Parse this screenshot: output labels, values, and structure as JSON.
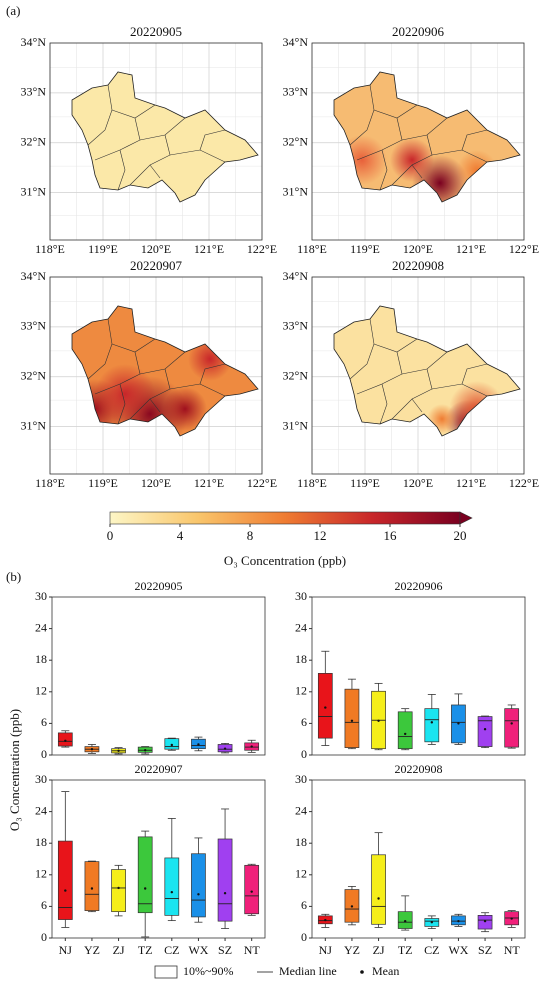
{
  "panel_labels": [
    "(a)",
    "(b)"
  ],
  "ylabel": "O₃ Concentration (ppb)",
  "legend": [
    "10%~90%",
    "Median line",
    "Mean"
  ],
  "chart_data": [
    {
      "type": "map",
      "title": "20220905",
      "fill": "#fbe8a8",
      "xlim": [
        118,
        122
      ],
      "ylim": [
        30.05,
        34
      ],
      "xticks": [
        {
          "value": 118,
          "label": "118°E"
        },
        {
          "value": 119,
          "label": "119°E"
        },
        {
          "value": 120,
          "label": "120°E"
        },
        {
          "value": 121,
          "label": "121°E"
        },
        {
          "value": 122,
          "label": "122°E"
        }
      ],
      "yticks": [
        {
          "value": 31,
          "label": "31°N"
        },
        {
          "value": 32,
          "label": "32°N"
        },
        {
          "value": 33,
          "label": "33°N"
        },
        {
          "value": 34,
          "label": "34°N"
        }
      ]
    },
    {
      "type": "map",
      "title": "20220906",
      "fill": "#f6bb72",
      "xlim": [
        118,
        122
      ],
      "ylim": [
        30.05,
        34
      ],
      "xticks": [
        {
          "value": 118,
          "label": "118°E"
        },
        {
          "value": 119,
          "label": "119°E"
        },
        {
          "value": 120,
          "label": "120°E"
        },
        {
          "value": 121,
          "label": "121°E"
        },
        {
          "value": 122,
          "label": "122°E"
        }
      ],
      "yticks": [
        {
          "value": 31,
          "label": "31°N"
        },
        {
          "value": 32,
          "label": "32°N"
        },
        {
          "value": 33,
          "label": "33°N"
        },
        {
          "value": 34,
          "label": "34°N"
        }
      ]
    },
    {
      "type": "map",
      "title": "20220907",
      "fill": "#ee8a40",
      "xlim": [
        118,
        122
      ],
      "ylim": [
        30.05,
        34
      ],
      "xticks": [
        {
          "value": 118,
          "label": "118°E"
        },
        {
          "value": 119,
          "label": "119°E"
        },
        {
          "value": 120,
          "label": "120°E"
        },
        {
          "value": 121,
          "label": "121°E"
        },
        {
          "value": 122,
          "label": "122°E"
        }
      ],
      "yticks": [
        {
          "value": 31,
          "label": "31°N"
        },
        {
          "value": 32,
          "label": "32°N"
        },
        {
          "value": 33,
          "label": "33°N"
        },
        {
          "value": 34,
          "label": "34°N"
        }
      ]
    },
    {
      "type": "map",
      "title": "20220908",
      "fill": "#fbe1a0",
      "xlim": [
        118,
        122
      ],
      "ylim": [
        30.05,
        34
      ],
      "xticks": [
        {
          "value": 118,
          "label": "118°E"
        },
        {
          "value": 119,
          "label": "119°E"
        },
        {
          "value": 120,
          "label": "120°E"
        },
        {
          "value": 121,
          "label": "121°E"
        },
        {
          "value": 122,
          "label": "122°E"
        }
      ],
      "yticks": [
        {
          "value": 31,
          "label": "31°N"
        },
        {
          "value": 32,
          "label": "32°N"
        },
        {
          "value": 33,
          "label": "33°N"
        },
        {
          "value": 34,
          "label": "34°N"
        }
      ]
    },
    {
      "type": "colorbar",
      "title": "O₃ Concentration (ppb)",
      "xlim": [
        0,
        20
      ],
      "xticks": [
        0,
        4,
        8,
        12,
        16,
        20
      ],
      "colors": [
        "#fdf6c6",
        "#f9c66c",
        "#ef7c32",
        "#c8262a",
        "#7a0020"
      ]
    },
    {
      "type": "box",
      "title": "20220905",
      "ylim": [
        0,
        30
      ],
      "yticks": [
        0,
        6,
        12,
        18,
        24,
        30
      ],
      "colors": [
        "#e8141a",
        "#f07a24",
        "#f5ee1a",
        "#3cc83c",
        "#1ae4f0",
        "#1a90e8",
        "#a040f0",
        "#f0207a"
      ],
      "boxes": [
        {
          "min": 1.5,
          "p10": 1.7,
          "median": 2.6,
          "p90": 4.2,
          "max": 4.6,
          "mean": 2.7
        },
        {
          "min": 0.3,
          "p10": 0.6,
          "median": 1.1,
          "p90": 1.6,
          "max": 2.0,
          "mean": 1.1
        },
        {
          "min": 0.2,
          "p10": 0.4,
          "median": 0.8,
          "p90": 1.2,
          "max": 1.4,
          "mean": 0.8
        },
        {
          "min": 0.2,
          "p10": 0.5,
          "median": 0.9,
          "p90": 1.5,
          "max": 1.6,
          "mean": 0.9
        },
        {
          "min": 0.9,
          "p10": 1.1,
          "median": 1.6,
          "p90": 3.1,
          "max": 3.2,
          "mean": 1.9
        },
        {
          "min": 0.8,
          "p10": 1.2,
          "median": 1.8,
          "p90": 3.0,
          "max": 3.4,
          "mean": 2.0
        },
        {
          "min": 0.4,
          "p10": 0.6,
          "median": 1.1,
          "p90": 2.0,
          "max": 2.2,
          "mean": 1.2
        },
        {
          "min": 0.5,
          "p10": 0.9,
          "median": 1.5,
          "p90": 2.3,
          "max": 2.8,
          "mean": 1.6
        }
      ]
    },
    {
      "type": "box",
      "title": "20220906",
      "ylim": [
        0,
        30
      ],
      "yticks": [
        0,
        6,
        12,
        18,
        24,
        30
      ],
      "colors": [
        "#e8141a",
        "#f07a24",
        "#f5ee1a",
        "#3cc83c",
        "#1ae4f0",
        "#1a90e8",
        "#a040f0",
        "#f0207a"
      ],
      "boxes": [
        {
          "min": 1.8,
          "p10": 3.2,
          "median": 7.3,
          "p90": 15.5,
          "max": 19.7,
          "mean": 9.0
        },
        {
          "min": 1.2,
          "p10": 1.4,
          "median": 6.2,
          "p90": 12.5,
          "max": 14.4,
          "mean": 6.5
        },
        {
          "min": 1.0,
          "p10": 1.2,
          "median": 6.6,
          "p90": 12.1,
          "max": 13.6,
          "mean": 6.5
        },
        {
          "min": 1.0,
          "p10": 1.2,
          "median": 3.5,
          "p90": 8.2,
          "max": 8.8,
          "mean": 4.0
        },
        {
          "min": 2.0,
          "p10": 2.5,
          "median": 6.7,
          "p90": 8.8,
          "max": 11.5,
          "mean": 6.2
        },
        {
          "min": 2.0,
          "p10": 2.3,
          "median": 6.2,
          "p90": 9.5,
          "max": 11.6,
          "mean": 6.0
        },
        {
          "min": 1.4,
          "p10": 1.6,
          "median": 6.5,
          "p90": 7.3,
          "max": 7.4,
          "mean": 4.9
        },
        {
          "min": 1.3,
          "p10": 1.5,
          "median": 6.5,
          "p90": 8.8,
          "max": 9.5,
          "mean": 6.0
        }
      ]
    },
    {
      "type": "box",
      "title": "20220907",
      "ylim": [
        0,
        30
      ],
      "yticks": [
        0,
        6,
        12,
        18,
        24,
        30
      ],
      "categories": [
        "NJ",
        "YZ",
        "ZJ",
        "TZ",
        "CZ",
        "WX",
        "SZ",
        "NT"
      ],
      "colors": [
        "#e8141a",
        "#f07a24",
        "#f5ee1a",
        "#3cc83c",
        "#1ae4f0",
        "#1a90e8",
        "#a040f0",
        "#f0207a"
      ],
      "boxes": [
        {
          "min": 2.0,
          "p10": 3.5,
          "median": 5.8,
          "p90": 18.4,
          "max": 27.8,
          "mean": 9.0
        },
        {
          "min": 5.0,
          "p10": 5.2,
          "median": 8.3,
          "p90": 14.5,
          "max": 14.6,
          "mean": 9.4
        },
        {
          "min": 4.2,
          "p10": 5.0,
          "median": 9.5,
          "p90": 13.0,
          "max": 13.8,
          "mean": 9.5
        },
        {
          "min": 0.2,
          "p10": 4.8,
          "median": 6.5,
          "p90": 19.2,
          "max": 20.3,
          "mean": 9.4
        },
        {
          "min": 3.3,
          "p10": 4.3,
          "median": 7.5,
          "p90": 15.2,
          "max": 22.7,
          "mean": 8.7
        },
        {
          "min": 3.0,
          "p10": 4.0,
          "median": 7.2,
          "p90": 16.0,
          "max": 19.0,
          "mean": 8.3
        },
        {
          "min": 1.8,
          "p10": 3.2,
          "median": 6.5,
          "p90": 18.8,
          "max": 24.5,
          "mean": 8.5
        },
        {
          "min": 4.3,
          "p10": 4.6,
          "median": 8.0,
          "p90": 13.8,
          "max": 14.0,
          "mean": 8.8
        }
      ]
    },
    {
      "type": "box",
      "title": "20220908",
      "ylim": [
        0,
        30
      ],
      "yticks": [
        0,
        6,
        12,
        18,
        24,
        30
      ],
      "categories": [
        "NJ",
        "YZ",
        "ZJ",
        "TZ",
        "CZ",
        "WX",
        "SZ",
        "NT"
      ],
      "colors": [
        "#e8141a",
        "#f07a24",
        "#f5ee1a",
        "#3cc83c",
        "#1ae4f0",
        "#1a90e8",
        "#a040f0",
        "#f0207a"
      ],
      "boxes": [
        {
          "min": 2.0,
          "p10": 2.7,
          "median": 3.3,
          "p90": 4.2,
          "max": 4.5,
          "mean": 3.4
        },
        {
          "min": 2.5,
          "p10": 3.0,
          "median": 5.5,
          "p90": 9.2,
          "max": 9.8,
          "mean": 6.0
        },
        {
          "min": 2.0,
          "p10": 2.6,
          "median": 6.0,
          "p90": 15.8,
          "max": 20.0,
          "mean": 7.5
        },
        {
          "min": 1.5,
          "p10": 1.8,
          "median": 3.0,
          "p90": 5.0,
          "max": 8.0,
          "mean": 3.2
        },
        {
          "min": 1.8,
          "p10": 2.2,
          "median": 3.2,
          "p90": 3.7,
          "max": 4.2,
          "mean": 3.0
        },
        {
          "min": 2.2,
          "p10": 2.5,
          "median": 3.2,
          "p90": 4.2,
          "max": 4.5,
          "mean": 3.2
        },
        {
          "min": 1.2,
          "p10": 1.7,
          "median": 3.4,
          "p90": 4.3,
          "max": 4.8,
          "mean": 3.2
        },
        {
          "min": 2.0,
          "p10": 2.5,
          "median": 3.8,
          "p90": 5.0,
          "max": 5.2,
          "mean": 3.7
        }
      ]
    }
  ]
}
